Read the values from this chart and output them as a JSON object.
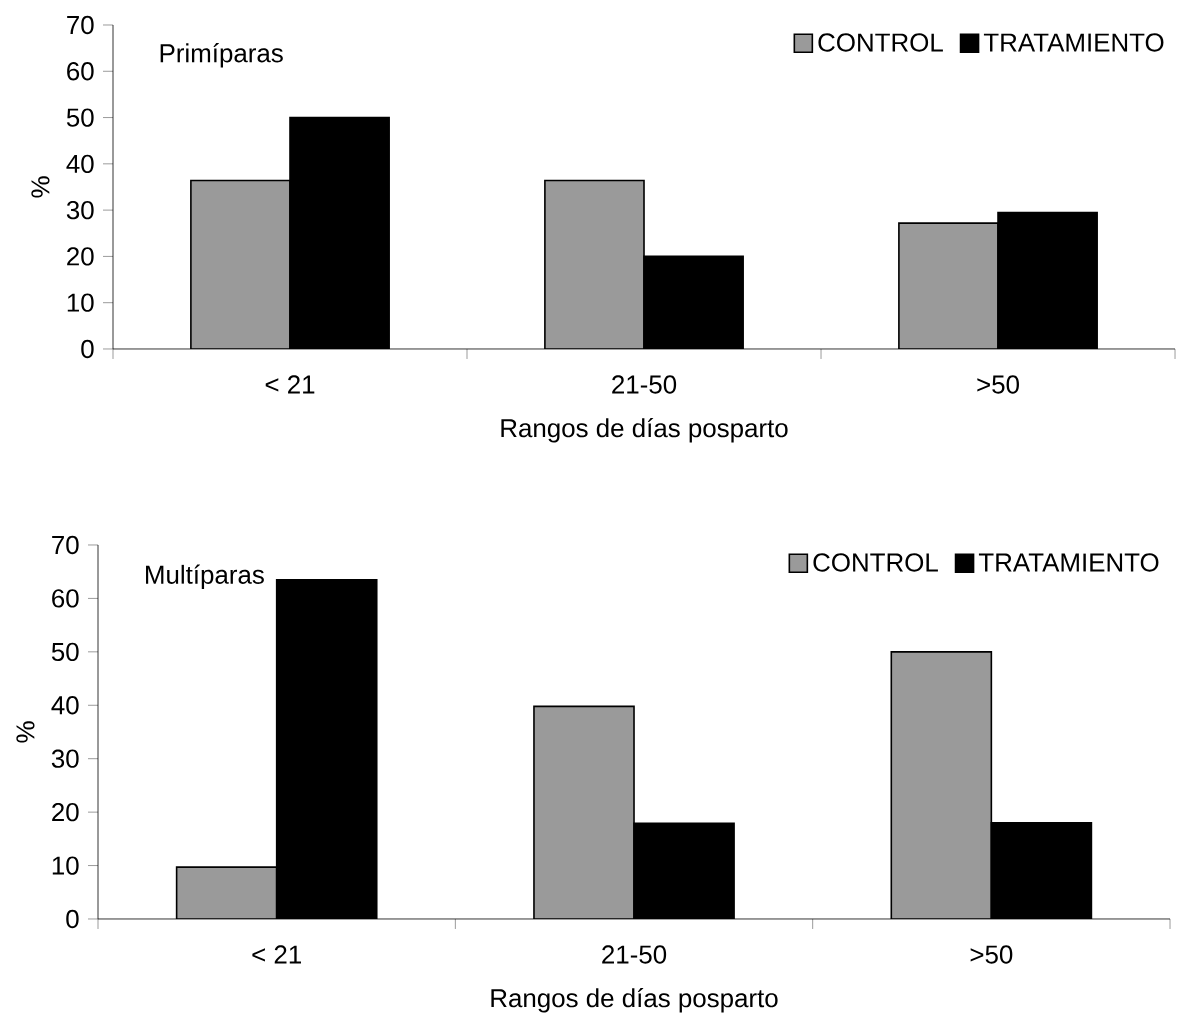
{
  "chart_data": [
    {
      "type": "bar",
      "title": "Primíparas",
      "xlabel": "Rangos de días posparto",
      "ylabel": "%",
      "categories": [
        "< 21",
        "21-50",
        ">50"
      ],
      "series": [
        {
          "name": "CONTROL",
          "color": "#9a9a9a",
          "values": [
            36.4,
            36.4,
            27.2
          ]
        },
        {
          "name": "TRATAMIENTO",
          "color": "#000000",
          "values": [
            50,
            20,
            29.5
          ]
        }
      ],
      "ylim": [
        0,
        70
      ],
      "yticks": [
        0,
        10,
        20,
        30,
        40,
        50,
        60,
        70
      ],
      "legend": "top right"
    },
    {
      "type": "bar",
      "title": "Multíparas",
      "xlabel": "Rangos de días posparto",
      "ylabel": "%",
      "categories": [
        "< 21",
        "21-50",
        ">50"
      ],
      "series": [
        {
          "name": "CONTROL",
          "color": "#9a9a9a",
          "values": [
            9.7,
            39.8,
            50
          ]
        },
        {
          "name": "TRATAMIENTO",
          "color": "#000000",
          "values": [
            63.5,
            17.9,
            18
          ]
        }
      ],
      "ylim": [
        0,
        70
      ],
      "yticks": [
        0,
        10,
        20,
        30,
        40,
        50,
        60,
        70
      ],
      "legend": "top right"
    }
  ]
}
